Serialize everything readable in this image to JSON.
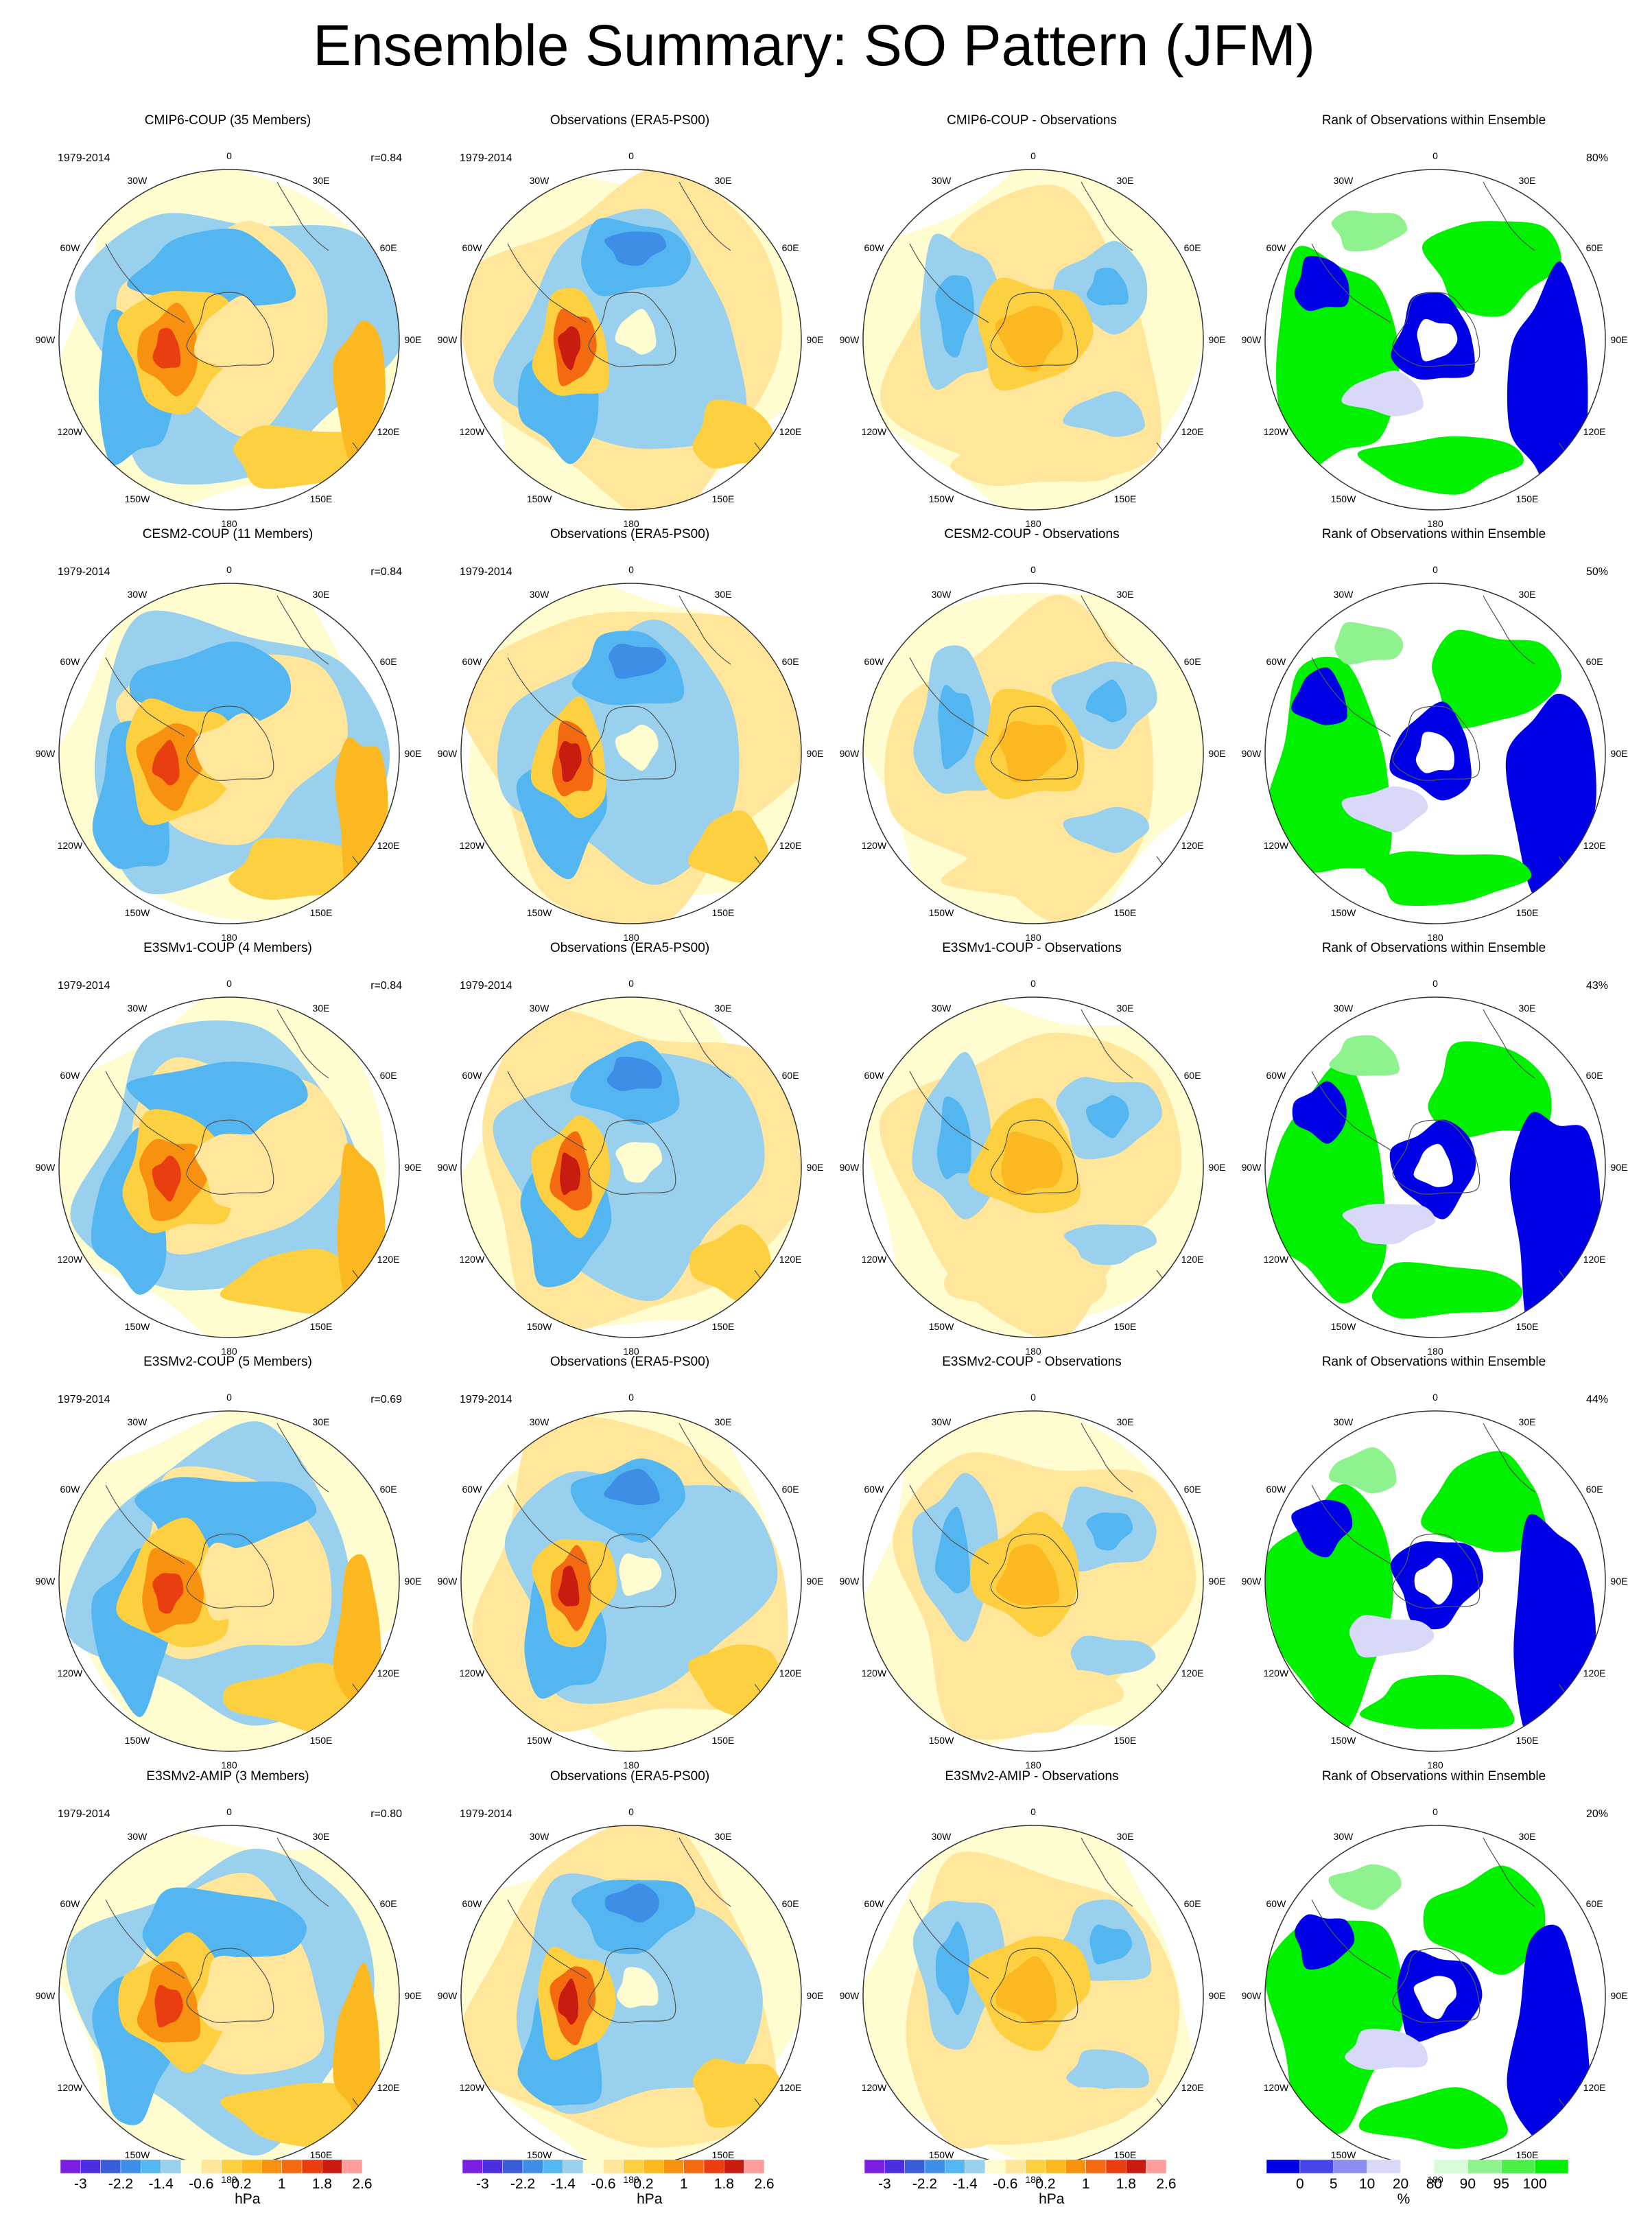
{
  "title": "Ensemble Summary: SO Pattern (JFM)",
  "lon_labels": [
    "0",
    "30E",
    "60E",
    "90E",
    "120E",
    "150E",
    "180",
    "150W",
    "120W",
    "90W",
    "60W",
    "30W"
  ],
  "colors": {
    "diverging": [
      "#7b20e0",
      "#4c2ee0",
      "#3a5ed8",
      "#3e8ee8",
      "#54b6f0",
      "#98d0ee",
      "#fffdd0",
      "#ffe69a",
      "#fcd040",
      "#fcb820",
      "#f89010",
      "#f46a10",
      "#e83e10",
      "#c81c10",
      "#ff9d9d"
    ],
    "rank": [
      "#0000e6",
      "#4545e8",
      "#8b8bf0",
      "#d8d8f8",
      "#ffffff",
      "#d8fbd8",
      "#8ef28e",
      "#47f047",
      "#00f000"
    ]
  },
  "colorbars": [
    {
      "ticks": [
        "-3",
        "-2.2",
        "-1.4",
        "-0.6",
        "0.2",
        "1",
        "1.8",
        "2.6"
      ],
      "unit": "hPa"
    },
    {
      "ticks": [
        "-3",
        "-2.2",
        "-1.4",
        "-0.6",
        "0.2",
        "1",
        "1.8",
        "2.6"
      ],
      "unit": "hPa"
    },
    {
      "ticks": [
        "-3",
        "-2.2",
        "-1.4",
        "-0.6",
        "0.2",
        "1",
        "1.8",
        "2.6"
      ],
      "unit": "hPa"
    },
    {
      "ticks": [
        "0",
        "5",
        "10",
        "20",
        "80",
        "90",
        "95",
        "100"
      ],
      "unit": "%"
    }
  ],
  "rows": [
    {
      "panels": [
        {
          "title": "CMIP6-COUP (35 Members)",
          "period": "1979-2014",
          "stat": "r=0.84"
        },
        {
          "title": "Observations (ERA5-PS00)",
          "period": "1979-2014",
          "stat": ""
        },
        {
          "title": "CMIP6-COUP - Observations",
          "period": "",
          "stat": ""
        },
        {
          "title": "Rank of Observations within Ensemble",
          "period": "",
          "stat": "80%"
        }
      ]
    },
    {
      "panels": [
        {
          "title": "CESM2-COUP (11 Members)",
          "period": "1979-2014",
          "stat": "r=0.84"
        },
        {
          "title": "Observations (ERA5-PS00)",
          "period": "1979-2014",
          "stat": ""
        },
        {
          "title": "CESM2-COUP - Observations",
          "period": "",
          "stat": ""
        },
        {
          "title": "Rank of Observations within Ensemble",
          "period": "",
          "stat": "50%"
        }
      ]
    },
    {
      "panels": [
        {
          "title": "E3SMv1-COUP (4 Members)",
          "period": "1979-2014",
          "stat": "r=0.84"
        },
        {
          "title": "Observations (ERA5-PS00)",
          "period": "1979-2014",
          "stat": ""
        },
        {
          "title": "E3SMv1-COUP - Observations",
          "period": "",
          "stat": ""
        },
        {
          "title": "Rank of Observations within Ensemble",
          "period": "",
          "stat": "43%"
        }
      ]
    },
    {
      "panels": [
        {
          "title": "E3SMv2-COUP (5 Members)",
          "period": "1979-2014",
          "stat": "r=0.69"
        },
        {
          "title": "Observations (ERA5-PS00)",
          "period": "1979-2014",
          "stat": ""
        },
        {
          "title": "E3SMv2-COUP - Observations",
          "period": "",
          "stat": ""
        },
        {
          "title": "Rank of Observations within Ensemble",
          "period": "",
          "stat": "44%"
        }
      ]
    },
    {
      "panels": [
        {
          "title": "E3SMv2-AMIP (3 Members)",
          "period": "1979-2014",
          "stat": "r=0.80"
        },
        {
          "title": "Observations (ERA5-PS00)",
          "period": "1979-2014",
          "stat": ""
        },
        {
          "title": "E3SMv2-AMIP - Observations",
          "period": "",
          "stat": ""
        },
        {
          "title": "Rank of Observations within Ensemble",
          "period": "",
          "stat": "20%"
        }
      ]
    }
  ]
}
